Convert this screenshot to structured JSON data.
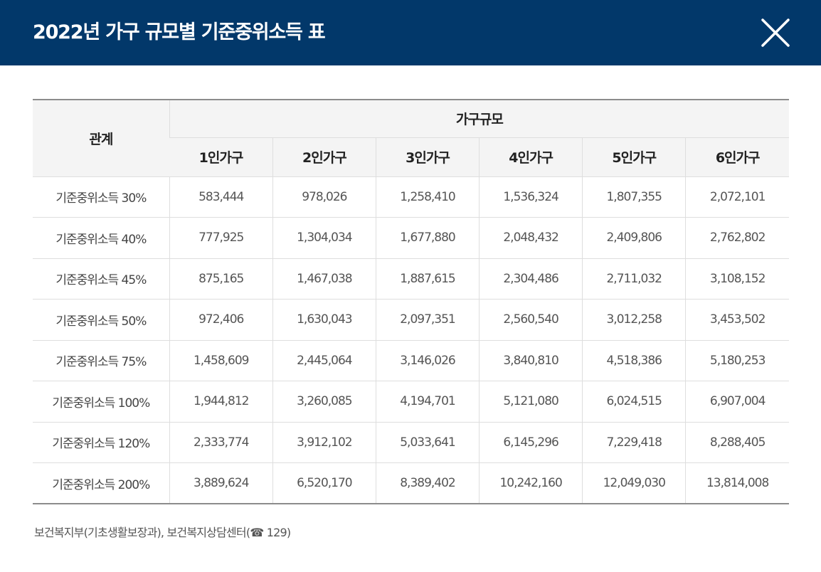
{
  "header": {
    "title": "2022년 가구 규모별 기준중위소득 표"
  },
  "table": {
    "relation_header": "관계",
    "group_header": "가구규모",
    "columns": [
      "1인가구",
      "2인가구",
      "3인가구",
      "4인가구",
      "5인가구",
      "6인가구"
    ],
    "rows": [
      {
        "label": "기준중위소득 30%",
        "values": [
          "583,444",
          "978,026",
          "1,258,410",
          "1,536,324",
          "1,807,355",
          "2,072,101"
        ]
      },
      {
        "label": "기준중위소득 40%",
        "values": [
          "777,925",
          "1,304,034",
          "1,677,880",
          "2,048,432",
          "2,409,806",
          "2,762,802"
        ]
      },
      {
        "label": "기준중위소득 45%",
        "values": [
          "875,165",
          "1,467,038",
          "1,887,615",
          "2,304,486",
          "2,711,032",
          "3,108,152"
        ]
      },
      {
        "label": "기준중위소득 50%",
        "values": [
          "972,406",
          "1,630,043",
          "2,097,351",
          "2,560,540",
          "3,012,258",
          "3,453,502"
        ]
      },
      {
        "label": "기준중위소득 75%",
        "values": [
          "1,458,609",
          "2,445,064",
          "3,146,026",
          "3,840,810",
          "4,518,386",
          "5,180,253"
        ]
      },
      {
        "label": "기준중위소득 100%",
        "values": [
          "1,944,812",
          "3,260,085",
          "4,194,701",
          "5,121,080",
          "6,024,515",
          "6,907,004"
        ]
      },
      {
        "label": "기준중위소득 120%",
        "values": [
          "2,333,774",
          "3,912,102",
          "5,033,641",
          "6,145,296",
          "7,229,418",
          "8,288,405"
        ]
      },
      {
        "label": "기준중위소득 200%",
        "values": [
          "3,889,624",
          "6,520,170",
          "8,389,402",
          "10,242,160",
          "12,049,030",
          "13,814,008"
        ]
      }
    ]
  },
  "footer": {
    "source_prefix": "보건복지부(기초생활보장과), 보건복지상담센터(",
    "phone_icon": "phone-icon",
    "phone_number": " 129)"
  },
  "colors": {
    "header_bg": "#02386a",
    "header_text": "#ffffff",
    "table_header_bg": "#f4f4f4"
  }
}
